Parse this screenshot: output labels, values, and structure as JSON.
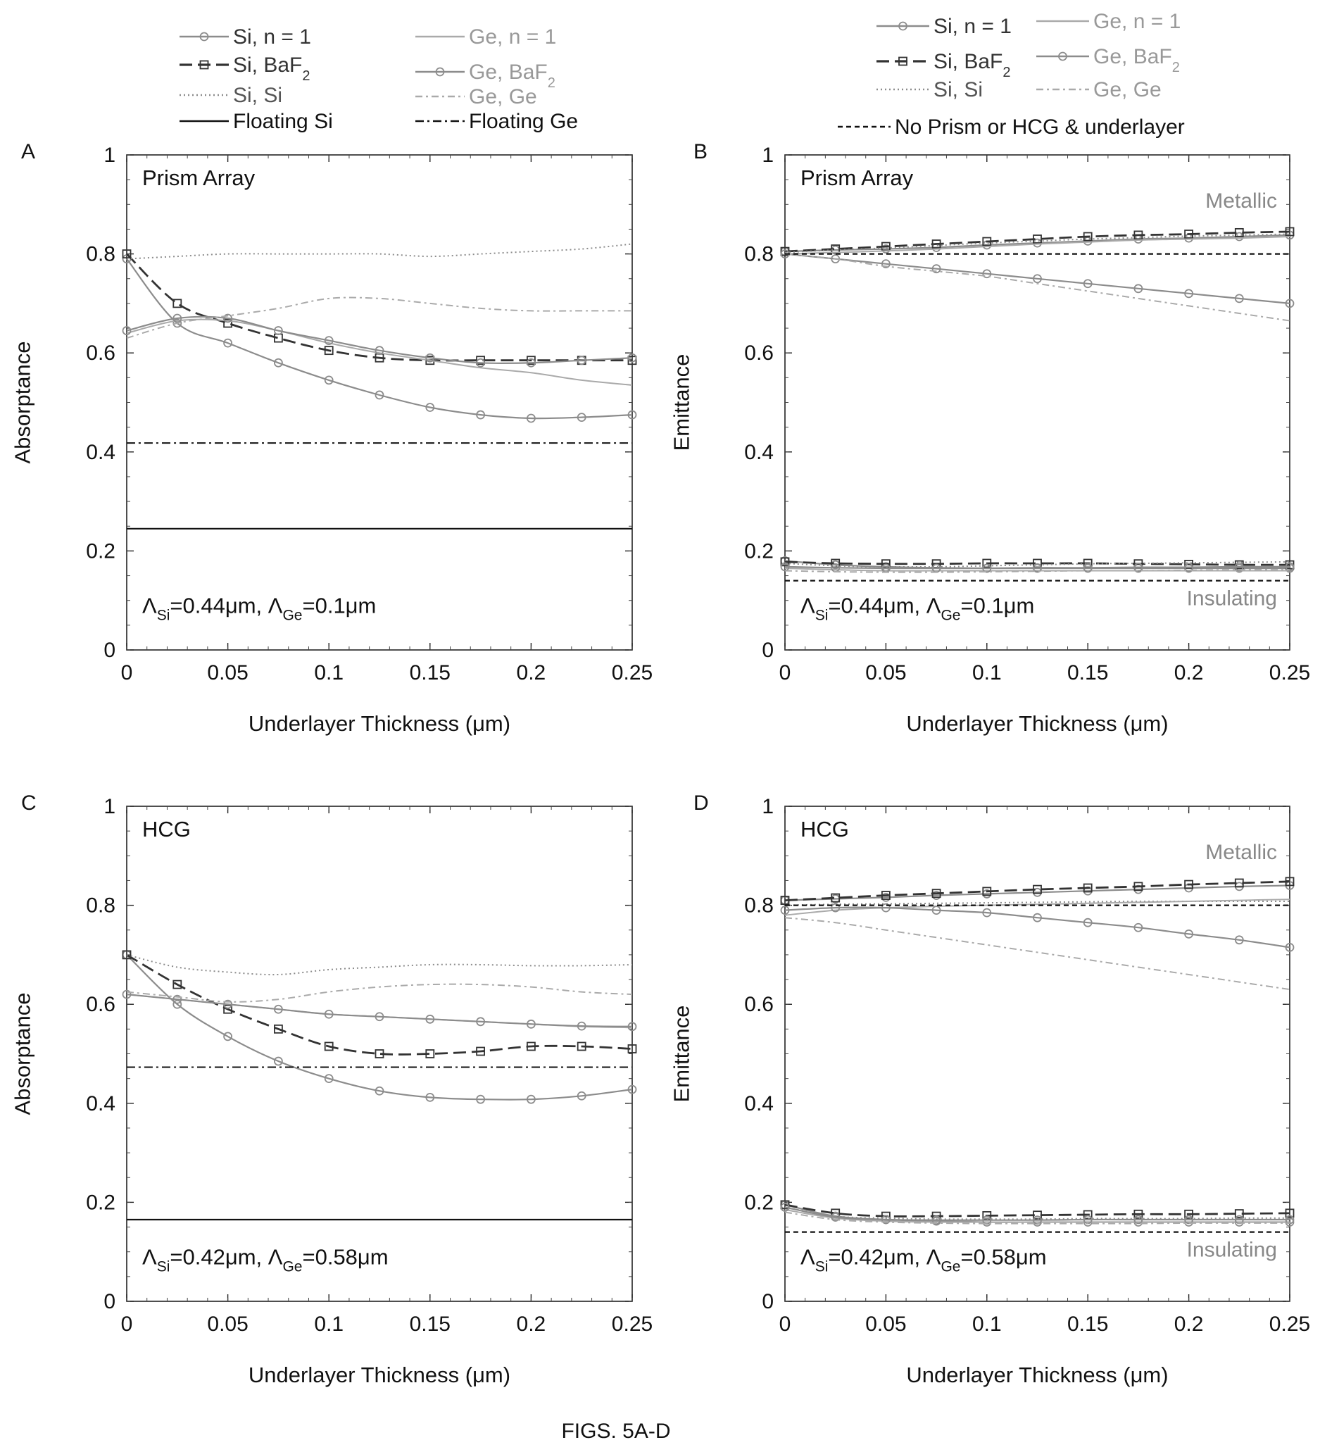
{
  "figure_caption": "FIGS. 5A-D",
  "legend_left": [
    {
      "label": "Si, n = 1",
      "style": "si_n1"
    },
    {
      "label": "Ge, n = 1",
      "style": "ge_n1"
    },
    {
      "label": "Si, BaF",
      "sub": "2",
      "style": "si_baf2"
    },
    {
      "label": "Ge, BaF",
      "sub": "2",
      "style": "ge_baf2"
    },
    {
      "label": "Si, Si",
      "style": "si_si"
    },
    {
      "label": "Ge, Ge",
      "style": "ge_ge"
    },
    {
      "label": "Floating Si",
      "style": "float_si"
    },
    {
      "label": "Floating Ge",
      "style": "float_ge"
    }
  ],
  "legend_right": [
    {
      "label": "Si, n = 1",
      "style": "si_n1"
    },
    {
      "label": "Ge, n = 1",
      "style": "ge_n1"
    },
    {
      "label": "Si, BaF",
      "sub": "2",
      "style": "si_baf2"
    },
    {
      "label": "Ge, BaF",
      "sub": "2",
      "style": "ge_baf2"
    },
    {
      "label": "Si, Si",
      "style": "si_si"
    },
    {
      "label": "Ge, Ge",
      "style": "ge_ge"
    },
    {
      "label": "No Prism or HCG & underlayer",
      "style": "noprism"
    }
  ],
  "colors": {
    "dark": "#333333",
    "gray": "#8c8c8c",
    "light": "#aaaaaa",
    "black": "#111111"
  },
  "chart_data": [
    {
      "panel": "A",
      "type": "line",
      "title": "Prism Array",
      "xlabel": "Underlayer Thickness (μm)",
      "ylabel": "Absorptance",
      "xlim": [
        0,
        0.25
      ],
      "ylim": [
        0,
        1
      ],
      "xticks": [
        "0",
        "0.05",
        "0.1",
        "0.15",
        "0.2",
        "0.25"
      ],
      "yticks": [
        "0",
        "0.2",
        "0.4",
        "0.6",
        "0.8",
        "1"
      ],
      "annotation": {
        "pre1": "Λ",
        "sub1": "Si",
        "mid": "=0.44μm, Λ",
        "sub2": "Ge",
        "post": "=0.1μm"
      },
      "x": [
        0,
        0.025,
        0.05,
        0.075,
        0.1,
        0.125,
        0.15,
        0.175,
        0.2,
        0.225,
        0.25
      ],
      "series": [
        {
          "name": "Si, n = 1",
          "style": "si_n1",
          "values": [
            0.79,
            0.66,
            0.62,
            0.58,
            0.545,
            0.515,
            0.49,
            0.475,
            0.468,
            0.47,
            0.475
          ]
        },
        {
          "name": "Si, BaF2",
          "style": "si_baf2",
          "values": [
            0.8,
            0.7,
            0.66,
            0.63,
            0.605,
            0.59,
            0.585,
            0.585,
            0.585,
            0.585,
            0.585
          ]
        },
        {
          "name": "Si, Si",
          "style": "si_si",
          "values": [
            0.79,
            0.795,
            0.8,
            0.8,
            0.8,
            0.8,
            0.795,
            0.8,
            0.805,
            0.81,
            0.82
          ]
        },
        {
          "name": "Ge, n = 1",
          "style": "ge_n1",
          "values": [
            0.64,
            0.665,
            0.665,
            0.645,
            0.62,
            0.6,
            0.585,
            0.57,
            0.56,
            0.545,
            0.535
          ]
        },
        {
          "name": "Ge, BaF2",
          "style": "ge_baf2",
          "values": [
            0.645,
            0.67,
            0.67,
            0.645,
            0.625,
            0.605,
            0.59,
            0.58,
            0.58,
            0.585,
            0.59
          ]
        },
        {
          "name": "Ge, Ge",
          "style": "ge_ge",
          "values": [
            0.63,
            0.66,
            0.675,
            0.69,
            0.71,
            0.71,
            0.7,
            0.69,
            0.685,
            0.685,
            0.685
          ]
        },
        {
          "name": "Floating Si",
          "style": "float_si",
          "values": [
            0.245,
            0.245,
            0.245,
            0.245,
            0.245,
            0.245,
            0.245,
            0.245,
            0.245,
            0.245,
            0.245
          ]
        },
        {
          "name": "Floating Ge",
          "style": "float_ge",
          "values": [
            0.418,
            0.418,
            0.418,
            0.418,
            0.418,
            0.418,
            0.418,
            0.418,
            0.418,
            0.418,
            0.418
          ]
        }
      ]
    },
    {
      "panel": "B",
      "type": "line",
      "title": "Prism Array",
      "xlabel": "Underlayer Thickness (μm)",
      "ylabel": "Emittance",
      "xlim": [
        0,
        0.25
      ],
      "ylim": [
        0,
        1
      ],
      "xticks": [
        "0",
        "0.05",
        "0.1",
        "0.15",
        "0.2",
        "0.25"
      ],
      "yticks": [
        "0",
        "0.2",
        "0.4",
        "0.6",
        "0.8",
        "1"
      ],
      "label_top": "Metallic",
      "label_bottom": "Insulating",
      "annotation": {
        "pre1": "Λ",
        "sub1": "Si",
        "mid": "=0.44μm, Λ",
        "sub2": "Ge",
        "post": "=0.1μm"
      },
      "x": [
        0,
        0.025,
        0.05,
        0.075,
        0.1,
        0.125,
        0.15,
        0.175,
        0.2,
        0.225,
        0.25
      ],
      "series": [
        {
          "name": "Si, n = 1 (metallic)",
          "style": "si_n1",
          "values": [
            0.805,
            0.808,
            0.81,
            0.813,
            0.818,
            0.822,
            0.826,
            0.83,
            0.832,
            0.835,
            0.838
          ]
        },
        {
          "name": "Si, BaF2 (metallic)",
          "style": "si_baf2",
          "values": [
            0.805,
            0.81,
            0.815,
            0.82,
            0.825,
            0.83,
            0.835,
            0.838,
            0.84,
            0.843,
            0.845
          ]
        },
        {
          "name": "Si, Si (metallic)",
          "style": "si_si",
          "values": [
            0.803,
            0.808,
            0.812,
            0.817,
            0.822,
            0.826,
            0.83,
            0.833,
            0.836,
            0.838,
            0.84
          ]
        },
        {
          "name": "Ge, n = 1 (metallic)",
          "style": "ge_n1",
          "values": [
            0.8,
            0.803,
            0.806,
            0.81,
            0.815,
            0.82,
            0.824,
            0.828,
            0.83,
            0.832,
            0.835
          ]
        },
        {
          "name": "Ge, BaF2 (metallic)",
          "style": "ge_baf2",
          "values": [
            0.8,
            0.79,
            0.78,
            0.77,
            0.76,
            0.75,
            0.74,
            0.73,
            0.72,
            0.71,
            0.7
          ]
        },
        {
          "name": "Ge, Ge (metallic)",
          "style": "ge_ge",
          "values": [
            0.8,
            0.79,
            0.775,
            0.765,
            0.755,
            0.74,
            0.725,
            0.71,
            0.695,
            0.68,
            0.665
          ]
        },
        {
          "name": "No Prism or HCG & underlayer (metallic)",
          "style": "noprism",
          "values": [
            0.8,
            0.8,
            0.8,
            0.8,
            0.8,
            0.8,
            0.8,
            0.8,
            0.8,
            0.8,
            0.8
          ]
        },
        {
          "name": "Si, n = 1 (insulating)",
          "style": "si_n1",
          "values": [
            0.18,
            0.172,
            0.168,
            0.166,
            0.165,
            0.165,
            0.165,
            0.165,
            0.165,
            0.165,
            0.165
          ]
        },
        {
          "name": "Si, BaF2 (insulating)",
          "style": "si_baf2",
          "values": [
            0.178,
            0.175,
            0.174,
            0.174,
            0.175,
            0.175,
            0.175,
            0.174,
            0.173,
            0.172,
            0.172
          ]
        },
        {
          "name": "Si, Si (insulating)",
          "style": "si_si",
          "values": [
            0.175,
            0.17,
            0.168,
            0.168,
            0.17,
            0.172,
            0.174,
            0.175,
            0.176,
            0.177,
            0.178
          ]
        },
        {
          "name": "Ge, n = 1 (insulating)",
          "style": "ge_n1",
          "values": [
            0.165,
            0.162,
            0.16,
            0.16,
            0.16,
            0.16,
            0.16,
            0.16,
            0.16,
            0.16,
            0.16
          ]
        },
        {
          "name": "Ge, BaF2 (insulating)",
          "style": "ge_baf2",
          "values": [
            0.168,
            0.166,
            0.165,
            0.165,
            0.165,
            0.166,
            0.166,
            0.167,
            0.167,
            0.168,
            0.168
          ]
        },
        {
          "name": "Ge, Ge (insulating)",
          "style": "ge_ge",
          "values": [
            0.16,
            0.158,
            0.157,
            0.157,
            0.158,
            0.159,
            0.16,
            0.16,
            0.161,
            0.162,
            0.162
          ]
        },
        {
          "name": "No Prism or HCG & underlayer (insulating)",
          "style": "noprism",
          "values": [
            0.14,
            0.14,
            0.14,
            0.14,
            0.14,
            0.14,
            0.14,
            0.14,
            0.14,
            0.14,
            0.14
          ]
        }
      ]
    },
    {
      "panel": "C",
      "type": "line",
      "title": "HCG",
      "xlabel": "Underlayer Thickness (μm)",
      "ylabel": "Absorptance",
      "xlim": [
        0,
        0.25
      ],
      "ylim": [
        0,
        1
      ],
      "xticks": [
        "0",
        "0.05",
        "0.1",
        "0.15",
        "0.2",
        "0.25"
      ],
      "yticks": [
        "0",
        "0.2",
        "0.4",
        "0.6",
        "0.8",
        "1"
      ],
      "annotation": {
        "pre1": "Λ",
        "sub1": "Si",
        "mid": "=0.42μm, Λ",
        "sub2": "Ge",
        "post": "=0.58μm"
      },
      "x": [
        0,
        0.025,
        0.05,
        0.075,
        0.1,
        0.125,
        0.15,
        0.175,
        0.2,
        0.225,
        0.25
      ],
      "series": [
        {
          "name": "Si, n = 1",
          "style": "si_n1",
          "values": [
            0.7,
            0.6,
            0.535,
            0.485,
            0.45,
            0.425,
            0.412,
            0.408,
            0.408,
            0.415,
            0.428
          ]
        },
        {
          "name": "Si, BaF2",
          "style": "si_baf2",
          "values": [
            0.7,
            0.64,
            0.59,
            0.55,
            0.515,
            0.5,
            0.5,
            0.505,
            0.515,
            0.515,
            0.51
          ]
        },
        {
          "name": "Si, Si",
          "style": "si_si",
          "values": [
            0.7,
            0.675,
            0.665,
            0.66,
            0.67,
            0.675,
            0.68,
            0.68,
            0.678,
            0.678,
            0.68
          ]
        },
        {
          "name": "Ge, n = 1",
          "style": "ge_n1",
          "values": [
            0.62,
            0.61,
            0.6,
            0.59,
            0.58,
            0.575,
            0.57,
            0.565,
            0.56,
            0.555,
            0.553
          ]
        },
        {
          "name": "Ge, BaF2",
          "style": "ge_baf2",
          "values": [
            0.62,
            0.61,
            0.6,
            0.59,
            0.58,
            0.575,
            0.57,
            0.565,
            0.56,
            0.556,
            0.555
          ]
        },
        {
          "name": "Ge, Ge",
          "style": "ge_ge",
          "values": [
            0.625,
            0.615,
            0.605,
            0.61,
            0.625,
            0.635,
            0.64,
            0.64,
            0.635,
            0.625,
            0.62
          ]
        },
        {
          "name": "Floating Si",
          "style": "float_si",
          "values": [
            0.165,
            0.165,
            0.165,
            0.165,
            0.165,
            0.165,
            0.165,
            0.165,
            0.165,
            0.165,
            0.165
          ]
        },
        {
          "name": "Floating Ge",
          "style": "float_ge",
          "values": [
            0.473,
            0.473,
            0.473,
            0.473,
            0.473,
            0.473,
            0.473,
            0.473,
            0.473,
            0.473,
            0.473
          ]
        }
      ]
    },
    {
      "panel": "D",
      "type": "line",
      "title": "HCG",
      "xlabel": "Underlayer Thickness (μm)",
      "ylabel": "Emittance",
      "xlim": [
        0,
        0.25
      ],
      "ylim": [
        0,
        1
      ],
      "xticks": [
        "0",
        "0.05",
        "0.1",
        "0.15",
        "0.2",
        "0.25"
      ],
      "yticks": [
        "0",
        "0.2",
        "0.4",
        "0.6",
        "0.8",
        "1"
      ],
      "label_top": "Metallic",
      "label_bottom": "Insulating",
      "annotation": {
        "pre1": "Λ",
        "sub1": "Si",
        "mid": "=0.42μm, Λ",
        "sub2": "Ge",
        "post": "=0.58μm"
      },
      "x": [
        0,
        0.025,
        0.05,
        0.075,
        0.1,
        0.125,
        0.15,
        0.175,
        0.2,
        0.225,
        0.25
      ],
      "series": [
        {
          "name": "Si, n = 1 (metallic)",
          "style": "si_n1",
          "values": [
            0.81,
            0.813,
            0.816,
            0.82,
            0.823,
            0.826,
            0.829,
            0.832,
            0.835,
            0.838,
            0.84
          ]
        },
        {
          "name": "Si, BaF2 (metallic)",
          "style": "si_baf2",
          "values": [
            0.81,
            0.815,
            0.82,
            0.824,
            0.828,
            0.832,
            0.835,
            0.838,
            0.842,
            0.845,
            0.848
          ]
        },
        {
          "name": "Si, Si (metallic)",
          "style": "si_si",
          "values": [
            0.8,
            0.802,
            0.803,
            0.804,
            0.805,
            0.806,
            0.807,
            0.808,
            0.808,
            0.808,
            0.808
          ]
        },
        {
          "name": "Ge, n = 1 (metallic)",
          "style": "ge_n1",
          "values": [
            0.78,
            0.79,
            0.795,
            0.798,
            0.8,
            0.802,
            0.804,
            0.806,
            0.808,
            0.81,
            0.812
          ]
        },
        {
          "name": "Ge, BaF2 (metallic)",
          "style": "ge_baf2",
          "values": [
            0.79,
            0.795,
            0.795,
            0.79,
            0.785,
            0.775,
            0.765,
            0.755,
            0.742,
            0.73,
            0.715
          ]
        },
        {
          "name": "Ge, Ge (metallic)",
          "style": "ge_ge",
          "values": [
            0.775,
            0.765,
            0.75,
            0.735,
            0.72,
            0.705,
            0.69,
            0.675,
            0.66,
            0.645,
            0.63
          ]
        },
        {
          "name": "No Prism or HCG & underlayer (metallic)",
          "style": "noprism",
          "values": [
            0.8,
            0.8,
            0.8,
            0.8,
            0.8,
            0.8,
            0.8,
            0.8,
            0.8,
            0.8,
            0.8
          ]
        },
        {
          "name": "Si, n = 1 (insulating)",
          "style": "si_n1",
          "values": [
            0.195,
            0.172,
            0.165,
            0.162,
            0.16,
            0.16,
            0.16,
            0.16,
            0.16,
            0.16,
            0.16
          ]
        },
        {
          "name": "Si, BaF2 (insulating)",
          "style": "si_baf2",
          "values": [
            0.195,
            0.178,
            0.172,
            0.172,
            0.173,
            0.174,
            0.175,
            0.176,
            0.176,
            0.177,
            0.178
          ]
        },
        {
          "name": "Si, Si (insulating)",
          "style": "si_si",
          "values": [
            0.19,
            0.172,
            0.168,
            0.166,
            0.166,
            0.166,
            0.167,
            0.167,
            0.167,
            0.168,
            0.168
          ]
        },
        {
          "name": "Ge, n = 1 (insulating)",
          "style": "ge_n1",
          "values": [
            0.185,
            0.168,
            0.162,
            0.16,
            0.16,
            0.16,
            0.16,
            0.16,
            0.16,
            0.16,
            0.16
          ]
        },
        {
          "name": "Ge, BaF2 (insulating)",
          "style": "ge_baf2",
          "values": [
            0.19,
            0.17,
            0.165,
            0.164,
            0.164,
            0.164,
            0.165,
            0.165,
            0.165,
            0.165,
            0.165
          ]
        },
        {
          "name": "Ge, Ge (insulating)",
          "style": "ge_ge",
          "values": [
            0.18,
            0.165,
            0.16,
            0.158,
            0.157,
            0.157,
            0.157,
            0.157,
            0.158,
            0.158,
            0.158
          ]
        },
        {
          "name": "No Prism or HCG & underlayer (insulating)",
          "style": "noprism",
          "values": [
            0.14,
            0.14,
            0.14,
            0.14,
            0.14,
            0.14,
            0.14,
            0.14,
            0.14,
            0.14,
            0.14
          ]
        }
      ]
    }
  ]
}
